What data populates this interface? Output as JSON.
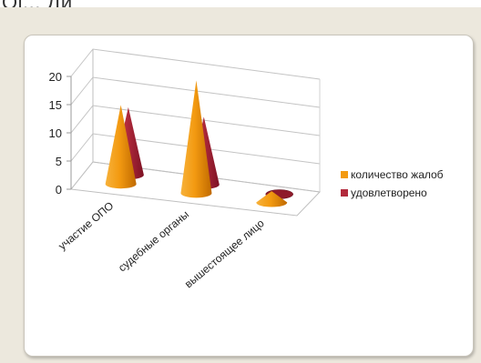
{
  "top_text": "Ol... Ди",
  "colors": {
    "series_1": "#f39a11",
    "series_2": "#b22a3c",
    "background": "#ece8dd"
  },
  "chart_data": {
    "type": "bar",
    "shape": "cone-3d",
    "title": "",
    "xlabel": "",
    "ylabel": "",
    "ylim": [
      0,
      20
    ],
    "yticks": [
      "0",
      "5",
      "10",
      "15",
      "20"
    ],
    "grid": true,
    "legend_position": "right",
    "categories": [
      "участие ОПО",
      "судебные органы",
      "вышестоящее лицо"
    ],
    "series": [
      {
        "name": "количество жалоб",
        "values": [
          14,
          20,
          2
        ]
      },
      {
        "name": "удовлетворено",
        "values": [
          12,
          12,
          0
        ]
      }
    ]
  }
}
